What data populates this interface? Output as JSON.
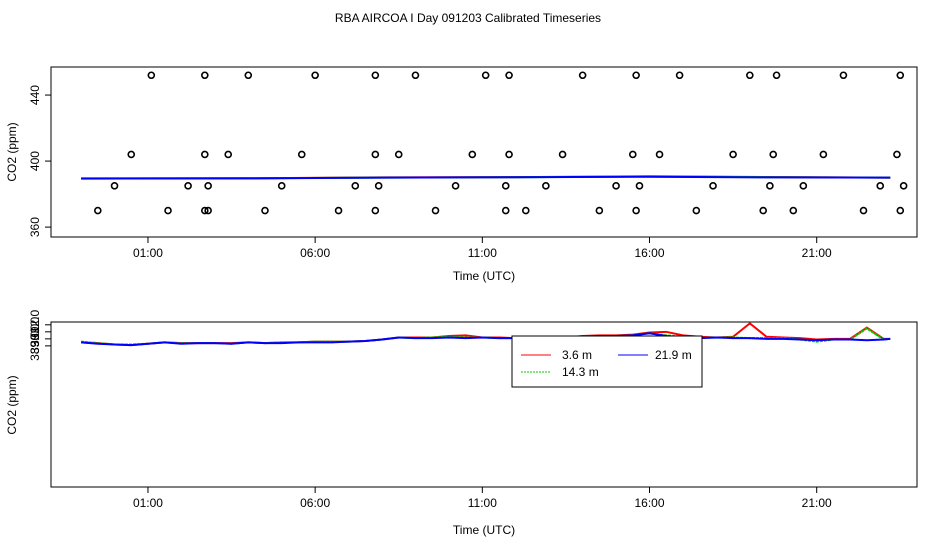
{
  "title": "RBA AIRCOA I  Day 091203  Calibrated Timeseries",
  "chart_data": [
    {
      "type": "scatter",
      "xlabel": "Time (UTC)",
      "ylabel": "CO2 (ppm)",
      "xlim": [
        -1.9,
        24.0
      ],
      "ylim": [
        354,
        457
      ],
      "xticks": [
        "01:00",
        "06:00",
        "11:00",
        "16:00",
        "21:00"
      ],
      "yticks": [
        "360",
        "400",
        "440"
      ],
      "reference_points": {
        "x": [
          -0.5,
          0.0,
          0.5,
          1.1,
          1.6,
          2.2,
          2.7,
          2.7,
          2.7,
          2.8,
          2.8,
          3.4,
          4.0,
          4.5,
          5.0,
          5.6,
          6.0,
          6.7,
          7.2,
          7.8,
          7.8,
          7.8,
          7.9,
          8.5,
          9.0,
          9.6,
          10.2,
          10.7,
          11.1,
          11.7,
          11.7,
          11.8,
          11.8,
          12.3,
          12.9,
          13.4,
          14.0,
          14.5,
          15.0,
          15.5,
          15.6,
          15.6,
          15.7,
          16.3,
          16.9,
          17.4,
          17.9,
          18.5,
          19.0,
          19.4,
          19.6,
          19.7,
          19.8,
          20.3,
          20.6,
          21.2,
          21.8,
          22.4,
          22.9,
          23.4,
          23.5,
          23.5,
          23.6
        ],
        "y": [
          370,
          385,
          404,
          452,
          370,
          385,
          370,
          404,
          452,
          370,
          385,
          404,
          452,
          370,
          385,
          404,
          452,
          370,
          385,
          404,
          452,
          370,
          385,
          404,
          452,
          370,
          385,
          404,
          452,
          370,
          385,
          404,
          452,
          370,
          385,
          404,
          452,
          370,
          385,
          404,
          452,
          370,
          385,
          404,
          452,
          370,
          385,
          404,
          452,
          370,
          385,
          404,
          452,
          370,
          385,
          404,
          452,
          370,
          385,
          404,
          452,
          370,
          385
        ]
      },
      "series": [
        {
          "color": "#ff0000",
          "x": [
            -1.0,
            4.0,
            8.0,
            12.0,
            16.0,
            20.0,
            23.2
          ],
          "y": [
            389.5,
            389.6,
            390.1,
            390.3,
            390.8,
            390.3,
            390.0
          ]
        },
        {
          "color": "#00cc00",
          "x": [
            -1.0,
            4.0,
            8.0,
            12.0,
            16.0,
            20.0,
            23.2
          ],
          "y": [
            389.5,
            389.6,
            390.0,
            390.2,
            390.6,
            390.2,
            390.0
          ]
        },
        {
          "color": "#0000ff",
          "x": [
            -1.0,
            4.0,
            8.0,
            12.0,
            16.0,
            20.0,
            23.2
          ],
          "y": [
            389.4,
            389.5,
            390.0,
            390.2,
            390.5,
            390.1,
            390.0
          ]
        }
      ]
    },
    {
      "type": "line",
      "xlabel": "Time (UTC)",
      "ylabel": "CO2 (ppm)",
      "xlim": [
        -1.9,
        24.0
      ],
      "ylim": [
        368.9,
        392.4
      ],
      "xticks": [
        "01:00",
        "06:00",
        "11:00",
        "16:00",
        "21:00"
      ],
      "yticks": [
        "389.0",
        "390.0",
        "391.0",
        "392.0"
      ],
      "legend_position": "top-right",
      "x": [
        -1.0,
        -0.5,
        0.0,
        0.5,
        1.0,
        1.5,
        2.0,
        2.5,
        3.0,
        3.5,
        4.0,
        4.5,
        5.0,
        5.5,
        6.0,
        6.5,
        7.0,
        7.5,
        8.0,
        8.5,
        9.0,
        9.5,
        10.0,
        10.5,
        11.0,
        11.5,
        12.0,
        12.5,
        13.0,
        13.5,
        14.0,
        14.5,
        15.0,
        15.5,
        16.0,
        16.5,
        17.0,
        17.5,
        18.0,
        18.5,
        19.0,
        19.5,
        20.0,
        20.5,
        21.0,
        21.5,
        22.0,
        22.5,
        23.0,
        23.2
      ],
      "series": [
        {
          "name": "3.6 m",
          "color": "#ff0000",
          "values": [
            389.5,
            389.4,
            389.2,
            389.1,
            389.3,
            389.5,
            389.4,
            389.4,
            389.4,
            389.4,
            389.5,
            389.4,
            389.5,
            389.5,
            389.6,
            389.6,
            389.6,
            389.7,
            389.9,
            390.2,
            390.2,
            390.2,
            390.4,
            390.5,
            390.2,
            390.2,
            390.1,
            390.2,
            390.3,
            390.2,
            390.4,
            390.5,
            390.5,
            390.6,
            390.9,
            391.0,
            390.5,
            390.3,
            390.2,
            390.3,
            392.2,
            390.3,
            390.2,
            390.1,
            389.9,
            390.0,
            390.0,
            391.6,
            390.0,
            390.0
          ]
        },
        {
          "name": "14.3 m",
          "color": "#00cc00",
          "values": [
            389.6,
            389.4,
            389.2,
            389.2,
            389.3,
            389.5,
            389.4,
            389.4,
            389.4,
            389.3,
            389.5,
            389.4,
            389.5,
            389.5,
            389.6,
            389.6,
            389.6,
            389.7,
            389.9,
            390.2,
            390.1,
            390.2,
            390.3,
            390.2,
            390.2,
            390.1,
            390.1,
            390.2,
            390.2,
            390.2,
            390.3,
            390.4,
            390.4,
            390.5,
            390.8,
            390.5,
            390.3,
            390.1,
            390.2,
            390.2,
            390.1,
            390.1,
            390.1,
            389.9,
            389.6,
            389.9,
            389.9,
            391.5,
            389.9,
            390.0
          ]
        },
        {
          "name": "21.9 m",
          "color": "#0000ff",
          "values": [
            389.5,
            389.3,
            389.2,
            389.1,
            389.3,
            389.5,
            389.3,
            389.4,
            389.4,
            389.3,
            389.5,
            389.4,
            389.4,
            389.5,
            389.5,
            389.5,
            389.6,
            389.7,
            389.9,
            390.2,
            390.1,
            390.1,
            390.2,
            390.1,
            390.2,
            390.1,
            390.1,
            390.1,
            390.2,
            390.2,
            390.3,
            390.4,
            390.4,
            390.5,
            390.8,
            390.4,
            390.2,
            390.1,
            390.2,
            390.1,
            390.1,
            390.0,
            390.0,
            389.9,
            389.8,
            389.9,
            389.9,
            389.8,
            389.9,
            390.0
          ]
        }
      ]
    }
  ]
}
